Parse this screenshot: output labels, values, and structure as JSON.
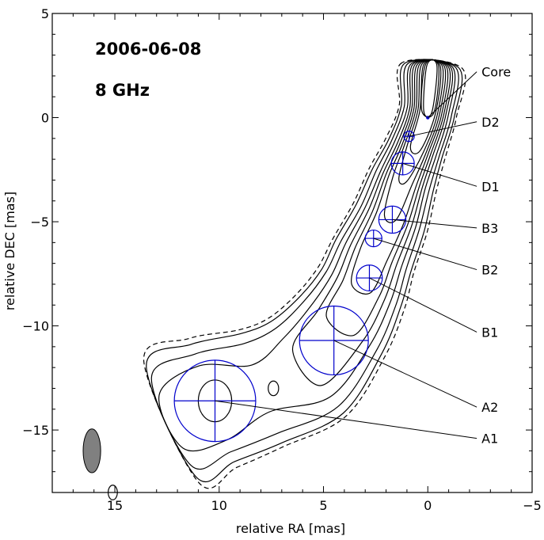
{
  "chart_data": {
    "type": "scatter",
    "title": "",
    "xlabel": "relative RA [mas]",
    "ylabel": "relative DEC [mas]",
    "xlim": [
      18,
      -5
    ],
    "ylim": [
      -18,
      5
    ],
    "x_ticks": [
      15,
      10,
      5,
      0,
      -5
    ],
    "x_tick_labels": [
      "15",
      "10",
      "5",
      "0",
      "−5"
    ],
    "y_ticks": [
      5,
      0,
      -5,
      -10,
      -15
    ],
    "y_tick_labels": [
      "5",
      "0",
      "−5",
      "−10",
      "−15"
    ],
    "grid": false,
    "annotations": {
      "date": "2006-06-08",
      "frequency": "8 GHz"
    },
    "components": [
      {
        "name": "Core",
        "x": 0.0,
        "y": 0.0,
        "r": 0.05,
        "label_x": -2.5,
        "label_y": 2.2
      },
      {
        "name": "D2",
        "x": 0.9,
        "y": -0.9,
        "r": 0.25,
        "label_x": -2.5,
        "label_y": -0.2
      },
      {
        "name": "D1",
        "x": 1.2,
        "y": -2.2,
        "r": 0.55,
        "label_x": -2.5,
        "label_y": -3.3
      },
      {
        "name": "B3",
        "x": 1.7,
        "y": -4.9,
        "r": 0.65,
        "label_x": -2.5,
        "label_y": -5.3
      },
      {
        "name": "B2",
        "x": 2.6,
        "y": -5.8,
        "r": 0.4,
        "label_x": -2.5,
        "label_y": -7.3
      },
      {
        "name": "B1",
        "x": 2.8,
        "y": -7.7,
        "r": 0.62,
        "label_x": -2.5,
        "label_y": -10.3
      },
      {
        "name": "A2",
        "x": 4.5,
        "y": -10.7,
        "r": 1.65,
        "label_x": -2.5,
        "label_y": -13.9
      },
      {
        "name": "A1",
        "x": 10.2,
        "y": -13.6,
        "r": 1.95,
        "label_x": -2.5,
        "label_y": -15.4
      }
    ],
    "beam": {
      "x": 16.1,
      "y": -16.0,
      "major": 1.05,
      "minor": 0.42,
      "pa_deg": 0
    },
    "colors": {
      "components": "#0000cc",
      "contours": "#000000",
      "beam": "#808080"
    }
  }
}
